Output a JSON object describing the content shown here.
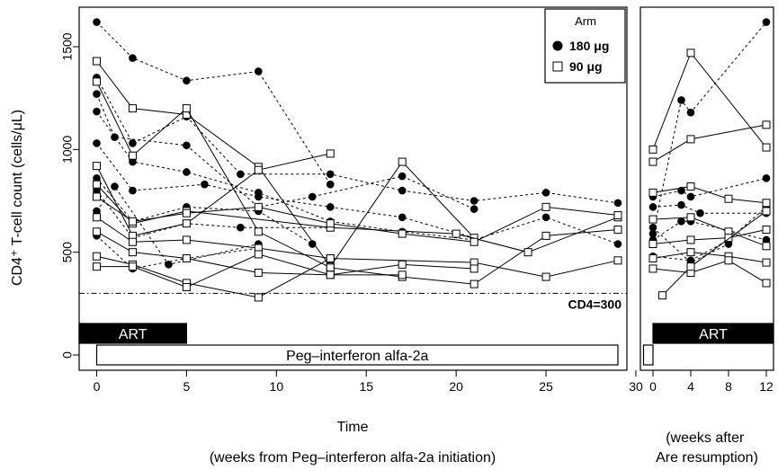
{
  "colors": {
    "ink": "#000000",
    "background": "#ffffff"
  },
  "chart_data": [
    {
      "type": "line",
      "panel": "left",
      "ylabel": "CD4⁺ T-cell count (cells/μL)",
      "xlabel": "Time",
      "xlabel_sub": "(weeks from Peg–interferon alfa-2a initiation)",
      "xlim": [
        -2,
        30
      ],
      "ylim": [
        -50,
        1700
      ],
      "xticks": [
        0,
        5,
        10,
        15,
        20,
        25,
        30
      ],
      "yticks": [
        0,
        500,
        1000,
        1500
      ],
      "reference_line": {
        "y": 300,
        "label": "CD4=300",
        "style": "dash-dot"
      },
      "bars": [
        {
          "label": "ART",
          "x0": -1,
          "x1": 5,
          "y": 105,
          "style": "filled"
        },
        {
          "label": "Peg–interferon alfa-2a",
          "x0": 0,
          "x1": 29,
          "y": 0,
          "style": "outline"
        }
      ],
      "legend": {
        "title": "Arm",
        "position": "top-right",
        "entries": [
          {
            "label": "180 μg",
            "marker": "filled-circle",
            "line": "dashed"
          },
          {
            "label": "90 μg",
            "marker": "open-square",
            "line": "solid"
          }
        ]
      },
      "grid": false,
      "series": [
        {
          "arm": "180 μg",
          "points": [
            [
              0,
              1620
            ],
            [
              2,
              1445
            ],
            [
              5,
              1335
            ],
            [
              9,
              1380
            ],
            [
              13,
              830
            ]
          ]
        },
        {
          "arm": "180 μg",
          "points": [
            [
              0,
              1350
            ],
            [
              2,
              1030
            ],
            [
              5,
              1160
            ],
            [
              8,
              880
            ],
            [
              13,
              880
            ],
            [
              17,
              800
            ],
            [
              21,
              750
            ],
            [
              25,
              790
            ],
            [
              29,
              740
            ]
          ]
        },
        {
          "arm": "180 μg",
          "points": [
            [
              0,
              1270
            ],
            [
              1,
              1060
            ],
            [
              5,
              1020
            ],
            [
              9,
              720
            ],
            [
              12,
              770
            ],
            [
              17,
              870
            ],
            [
              21,
              710
            ]
          ]
        },
        {
          "arm": "180 μg",
          "points": [
            [
              0,
              1185
            ],
            [
              2,
              940
            ],
            [
              5,
              890
            ],
            [
              9,
              790
            ],
            [
              13,
              650
            ],
            [
              17,
              600
            ],
            [
              21,
              560
            ],
            [
              25,
              670
            ],
            [
              29,
              540
            ]
          ]
        },
        {
          "arm": "180 μg",
          "points": [
            [
              0,
              1030
            ],
            [
              2,
              800
            ],
            [
              6,
              830
            ],
            [
              9,
              770
            ],
            [
              13,
              720
            ],
            [
              17,
              670
            ],
            [
              21,
              570
            ]
          ]
        },
        {
          "arm": "180 μg",
          "points": [
            [
              0,
              860
            ],
            [
              2,
              650
            ],
            [
              5,
              720
            ],
            [
              9,
              700
            ],
            [
              12,
              540
            ]
          ]
        },
        {
          "arm": "180 μg",
          "points": [
            [
              0,
              800
            ],
            [
              2,
              570
            ],
            [
              5,
              640
            ],
            [
              8,
              620
            ],
            [
              13,
              620
            ]
          ]
        },
        {
          "arm": "180 μg",
          "points": [
            [
              0,
              700
            ],
            [
              1,
              820
            ],
            [
              4,
              440
            ],
            [
              9,
              540
            ]
          ]
        },
        {
          "arm": "180 μg",
          "points": [
            [
              0,
              580
            ],
            [
              2,
              420
            ],
            [
              5,
              470
            ],
            [
              9,
              520
            ]
          ]
        },
        {
          "arm": "90 μg",
          "points": [
            [
              0,
              1430
            ],
            [
              2,
              1200
            ],
            [
              5,
              1170
            ],
            [
              9,
              915
            ],
            [
              13,
              430
            ],
            [
              17,
              940
            ],
            [
              21,
              570
            ]
          ]
        },
        {
          "arm": "90 μg",
          "points": [
            [
              0,
              1330
            ],
            [
              2,
              970
            ],
            [
              5,
              1200
            ],
            [
              9,
              600
            ],
            [
              13,
              425
            ],
            [
              17,
              380
            ],
            [
              21,
              345
            ],
            [
              25,
              580
            ],
            [
              29,
              610
            ]
          ]
        },
        {
          "arm": "90 μg",
          "points": [
            [
              0,
              920
            ],
            [
              2,
              580
            ],
            [
              5,
              640
            ],
            [
              9,
              900
            ],
            [
              13,
              980
            ]
          ]
        },
        {
          "arm": "90 μg",
          "points": [
            [
              0,
              830
            ],
            [
              2,
              640
            ],
            [
              5,
              700
            ],
            [
              13,
              620
            ],
            [
              20,
              590
            ],
            [
              24,
              500
            ],
            [
              29,
              670
            ]
          ]
        },
        {
          "arm": "90 μg",
          "points": [
            [
              0,
              770
            ],
            [
              2,
              650
            ],
            [
              5,
              690
            ],
            [
              9,
              720
            ],
            [
              13,
              640
            ],
            [
              17,
              590
            ],
            [
              21,
              550
            ],
            [
              25,
              720
            ],
            [
              29,
              680
            ]
          ]
        },
        {
          "arm": "90 μg",
          "points": [
            [
              0,
              670
            ],
            [
              2,
              550
            ],
            [
              5,
              560
            ],
            [
              9,
              520
            ],
            [
              13,
              470
            ],
            [
              21,
              450
            ],
            [
              25,
              380
            ],
            [
              29,
              460
            ]
          ]
        },
        {
          "arm": "90 μg",
          "points": [
            [
              0,
              600
            ],
            [
              2,
              500
            ],
            [
              5,
              470
            ],
            [
              9,
              400
            ],
            [
              13,
              390
            ],
            [
              17,
              440
            ],
            [
              21,
              420
            ]
          ]
        },
        {
          "arm": "90 μg",
          "points": [
            [
              0,
              480
            ],
            [
              2,
              440
            ],
            [
              5,
              350
            ],
            [
              9,
              280
            ],
            [
              13,
              470
            ]
          ]
        },
        {
          "arm": "90 μg",
          "points": [
            [
              0,
              430
            ],
            [
              2,
              430
            ],
            [
              5,
              330
            ],
            [
              9,
              490
            ],
            [
              13,
              390
            ],
            [
              17,
              390
            ]
          ]
        }
      ]
    },
    {
      "type": "line",
      "panel": "right",
      "xlabel_sub": "(weeks after Are resumption)",
      "xlim": [
        -1,
        13
      ],
      "ylim": [
        -50,
        1700
      ],
      "xticks": [
        0,
        4,
        8,
        12
      ],
      "bars": [
        {
          "label": "ART",
          "x0": 0,
          "x1": 13,
          "y": 105,
          "style": "filled"
        },
        {
          "label": "",
          "x0": -1,
          "x1": 0,
          "y": 0,
          "style": "outline"
        }
      ],
      "series": [
        {
          "arm": "180 μg",
          "points": [
            [
              0,
              590
            ],
            [
              3,
              1240
            ],
            [
              4,
              1180
            ],
            [
              12,
              1620
            ]
          ]
        },
        {
          "arm": "180 μg",
          "points": [
            [
              0,
              770
            ],
            [
              3,
              800
            ],
            [
              4,
              770
            ],
            [
              12,
              860
            ]
          ]
        },
        {
          "arm": "180 μg",
          "points": [
            [
              0,
              720
            ],
            [
              3,
              730
            ],
            [
              5,
              690
            ],
            [
              12,
              690
            ]
          ]
        },
        {
          "arm": "180 μg",
          "points": [
            [
              0,
              560
            ],
            [
              3,
              650
            ],
            [
              4,
              650
            ],
            [
              12,
              560
            ]
          ]
        },
        {
          "arm": "180 μg",
          "points": [
            [
              0,
              480
            ],
            [
              4,
              460
            ],
            [
              8,
              560
            ],
            [
              12,
              720
            ]
          ]
        },
        {
          "arm": "180 μg",
          "points": [
            [
              0,
              620
            ],
            [
              4,
              450
            ],
            [
              8,
              540
            ]
          ]
        },
        {
          "arm": "90 μg",
          "points": [
            [
              0,
              1000
            ],
            [
              4,
              1470
            ],
            [
              12,
              1010
            ]
          ]
        },
        {
          "arm": "90 μg",
          "points": [
            [
              0,
              940
            ],
            [
              4,
              1050
            ],
            [
              12,
              1120
            ]
          ]
        },
        {
          "arm": "90 μg",
          "points": [
            [
              0,
              790
            ],
            [
              4,
              820
            ],
            [
              8,
              760
            ],
            [
              12,
              740
            ]
          ]
        },
        {
          "arm": "90 μg",
          "points": [
            [
              0,
              660
            ],
            [
              4,
              670
            ],
            [
              8,
              600
            ],
            [
              12,
              530
            ]
          ]
        },
        {
          "arm": "90 μg",
          "points": [
            [
              0,
              540
            ],
            [
              4,
              560
            ],
            [
              8,
              570
            ],
            [
              12,
              610
            ]
          ]
        },
        {
          "arm": "90 μg",
          "points": [
            [
              0,
              470
            ],
            [
              4,
              500
            ],
            [
              8,
              480
            ],
            [
              12,
              450
            ]
          ]
        },
        {
          "arm": "90 μg",
          "points": [
            [
              0,
              420
            ],
            [
              4,
              400
            ],
            [
              8,
              460
            ],
            [
              12,
              350
            ]
          ]
        },
        {
          "arm": "90 μg",
          "points": [
            [
              1,
              290
            ],
            [
              4,
              430
            ],
            [
              12,
              700
            ]
          ]
        }
      ]
    }
  ]
}
